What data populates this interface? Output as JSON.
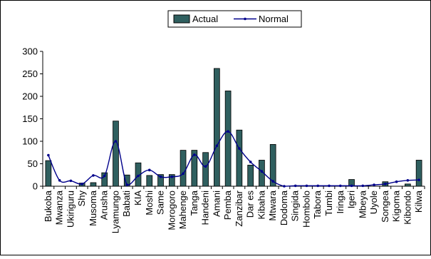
{
  "chart_data": {
    "type": "bar",
    "title": "",
    "xlabel": "",
    "ylabel": "",
    "ylim": [
      0,
      300
    ],
    "yticks": [
      0,
      50,
      100,
      150,
      200,
      250,
      300
    ],
    "grid": false,
    "legend": "top-center",
    "categories": [
      "Bukoba",
      "Mwanza",
      "Ukiriguru",
      "Shy",
      "Musoma",
      "Arusha",
      "Lyamungo",
      "Babati",
      "KIA",
      "Moshi",
      "Same",
      "Morogoro",
      "Mahenge",
      "Tanga",
      "Handeni",
      "Amani",
      "Pemba",
      "Zanzibar",
      "Dar es",
      "Kibaha",
      "Mtwara",
      "Dodoma",
      "Singida",
      "Hombolo",
      "Tabora",
      "Tumbi",
      "Iringa",
      "Igeri",
      "Mbeya",
      "Uyole",
      "Songea",
      "Kigoma",
      "Kibondo",
      "Kilwa"
    ],
    "series": [
      {
        "name": "Actual",
        "kind": "bar",
        "color": "#2F5F5F",
        "values": [
          57,
          0,
          0,
          7,
          8,
          30,
          145,
          25,
          52,
          24,
          26,
          26,
          80,
          80,
          75,
          262,
          212,
          125,
          47,
          58,
          93,
          0,
          0,
          0,
          0,
          0,
          0,
          15,
          0,
          0,
          10,
          0,
          5,
          58
        ]
      },
      {
        "name": "Normal",
        "kind": "line",
        "color": "#00008B",
        "values": [
          69,
          13,
          12,
          5,
          24,
          23,
          100,
          3,
          23,
          36,
          21,
          21,
          28,
          70,
          44,
          90,
          122,
          84,
          54,
          33,
          11,
          0,
          1,
          1,
          1,
          1,
          1,
          1,
          1,
          3,
          5,
          10,
          13,
          14
        ]
      }
    ]
  }
}
